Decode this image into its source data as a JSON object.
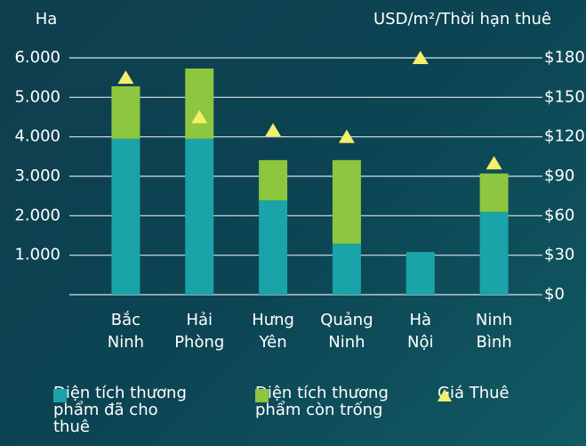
{
  "chart_data": {
    "type": "bar",
    "stacked": true,
    "ylabel": "Ha",
    "y2label": "USD/m²/Thời hạn thuê",
    "categories": [
      "Bắc Ninh",
      "Hải Phòng",
      "Hưng Yên",
      "Quảng Ninh",
      "Hà Nội",
      "Ninh Bình"
    ],
    "series": [
      {
        "name": "Diện tích thương phẩm đã cho thuê",
        "color": "#1aa3a8",
        "values": [
          3950,
          3950,
          2390,
          1290,
          1080,
          2100
        ]
      },
      {
        "name": "Diện tích thương phẩm còn trống",
        "color": "#8dc63f",
        "values": [
          1330,
          1780,
          1020,
          2120,
          0,
          970
        ]
      },
      {
        "name": "Giá Thuê",
        "type": "scatter",
        "marker": "triangle",
        "color": "#f3ee6b",
        "axis": "y2",
        "values": [
          165,
          135,
          125,
          120,
          180,
          100
        ]
      }
    ],
    "ylim": [
      0,
      6000
    ],
    "yticks": [
      {
        "value": 1000,
        "label": "1.000"
      },
      {
        "value": 2000,
        "label": "2.000"
      },
      {
        "value": 3000,
        "label": "3.000"
      },
      {
        "value": 4000,
        "label": "4.000"
      },
      {
        "value": 5000,
        "label": "5.000"
      },
      {
        "value": 6000,
        "label": "6.000"
      }
    ],
    "y2lim": [
      0,
      180
    ],
    "y2ticks": [
      {
        "value": 0,
        "label": "$0"
      },
      {
        "value": 30,
        "label": "$30"
      },
      {
        "value": 60,
        "label": "$60"
      },
      {
        "value": 90,
        "label": "$90"
      },
      {
        "value": 120,
        "label": "$120"
      },
      {
        "value": 150,
        "label": "$150"
      },
      {
        "value": 180,
        "label": "$180"
      }
    ],
    "grid": true
  }
}
